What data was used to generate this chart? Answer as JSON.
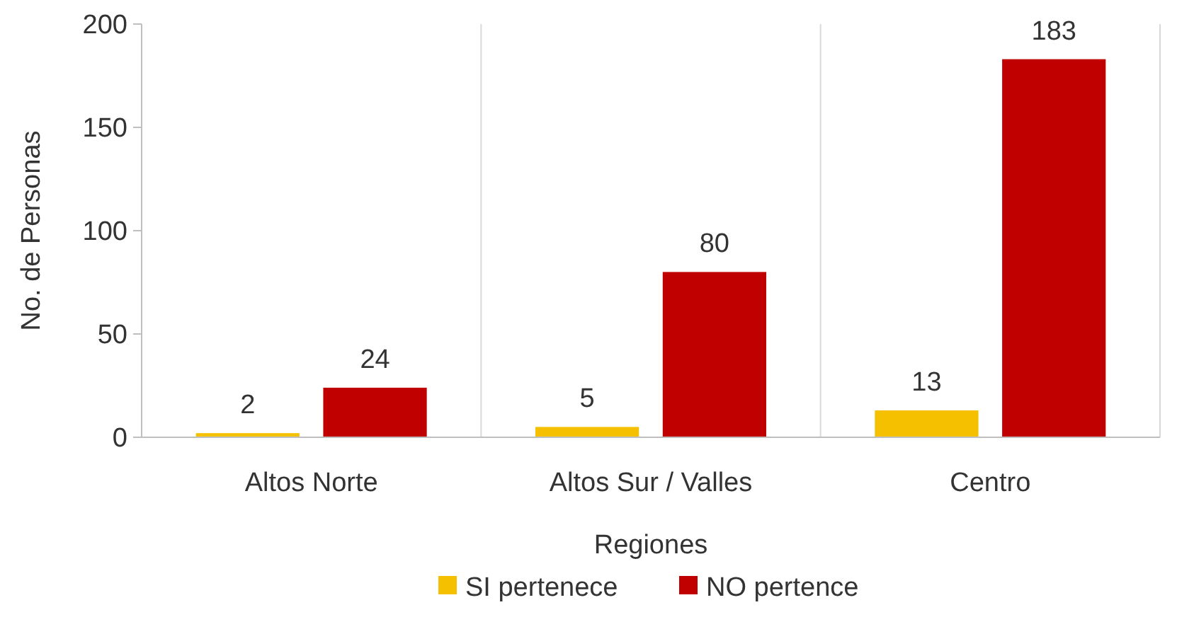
{
  "chart_data": {
    "type": "bar",
    "xlabel": "Regiones",
    "ylabel": "No. de Personas",
    "categories": [
      "Altos Norte",
      "Altos Sur / Valles",
      "Centro"
    ],
    "series": [
      {
        "name": "SI pertenece",
        "color": "#f5c000",
        "values": [
          2,
          5,
          13
        ]
      },
      {
        "name": "NO pertence",
        "color": "#c00000",
        "values": [
          24,
          80,
          183
        ]
      }
    ],
    "ylim": [
      0,
      200
    ],
    "yticks": [
      0,
      50,
      100,
      150,
      200
    ],
    "grid": "x",
    "legend": "bottom",
    "data_labels": true
  }
}
